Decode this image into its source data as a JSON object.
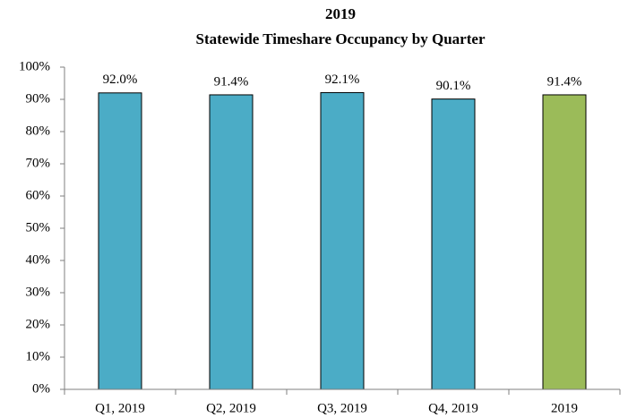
{
  "chart_data": {
    "type": "bar",
    "title": "2019",
    "subtitle": "Statewide Timeshare Occupancy by Quarter",
    "categories": [
      "Q1, 2019",
      "Q2, 2019",
      "Q3, 2019",
      "Q4, 2019",
      "2019"
    ],
    "values": [
      92.0,
      91.4,
      92.1,
      90.1,
      91.4
    ],
    "value_labels": [
      "92.0%",
      "91.4%",
      "92.1%",
      "90.1%",
      "91.4%"
    ],
    "colors": [
      "#4bacc6",
      "#4bacc6",
      "#4bacc6",
      "#4bacc6",
      "#9bbb59"
    ],
    "ylim": [
      0,
      100
    ],
    "yticks": [
      {
        "value": 0,
        "label": "0%"
      },
      {
        "value": 10,
        "label": "10%"
      },
      {
        "value": 20,
        "label": "20%"
      },
      {
        "value": 30,
        "label": "30%"
      },
      {
        "value": 40,
        "label": "40%"
      },
      {
        "value": 50,
        "label": "50%"
      },
      {
        "value": 60,
        "label": "60%"
      },
      {
        "value": 70,
        "label": "70%"
      },
      {
        "value": 80,
        "label": "80%"
      },
      {
        "value": 90,
        "label": "90%"
      },
      {
        "value": 100,
        "label": "100%"
      }
    ],
    "grid": false
  }
}
